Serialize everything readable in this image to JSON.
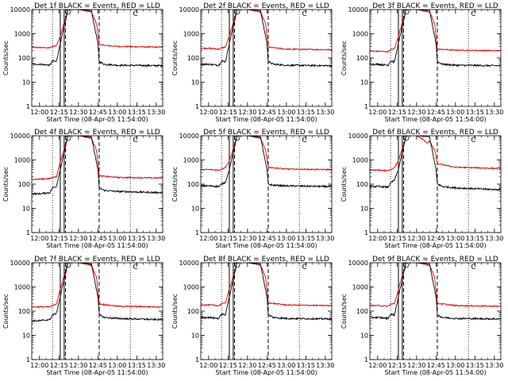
{
  "chart_data": {
    "type": "line",
    "y_axis_label": "Counts/sec",
    "x_axis_label": "Start Time (08-Apr-05 11:54:00)",
    "y_scale": "log",
    "ylim": [
      1,
      10000
    ],
    "y_ticks": [
      {
        "value": 1,
        "label": "1"
      },
      {
        "value": 10,
        "label": "10"
      },
      {
        "value": 100,
        "label": "100"
      },
      {
        "value": 1000,
        "label": "1000"
      },
      {
        "value": 10000,
        "label": "10000"
      }
    ],
    "xlim": [
      "11:54",
      "13:35"
    ],
    "x_ticks": [
      {
        "time": "12:00",
        "label": "12:00"
      },
      {
        "time": "12:15",
        "label": "12:15"
      },
      {
        "time": "12:30",
        "label": "12:30"
      },
      {
        "time": "12:45",
        "label": "12:45"
      },
      {
        "time": "13:00",
        "label": "13:00"
      },
      {
        "time": "13:15",
        "label": "13:15"
      },
      {
        "time": "13:30",
        "label": "13:30"
      }
    ],
    "markers": {
      "dotted": [
        "12:10",
        "13:10"
      ],
      "solid": [
        "12:16",
        "12:19"
      ],
      "dashed": [
        "12:20",
        "12:46"
      ],
      "circle_time": "12:22",
      "c_time": "13:12",
      "c_label": "C"
    },
    "series_colors": {
      "events": "#000000",
      "lld": "#e00000"
    },
    "panels": [
      {
        "title": "Det 1f BLACK = Events, RED = LLD",
        "events": [
          [
            "12:00",
            55
          ],
          [
            "12:08",
            50
          ],
          [
            "12:10",
            75
          ],
          [
            "12:13",
            70
          ],
          [
            "12:16",
            400
          ],
          [
            "12:19",
            2000
          ],
          [
            "12:22",
            10000
          ],
          [
            "12:30",
            10000
          ],
          [
            "12:40",
            9000
          ],
          [
            "12:45",
            400
          ],
          [
            "12:46",
            70
          ],
          [
            "12:50",
            55
          ],
          [
            "13:00",
            50
          ],
          [
            "13:30",
            48
          ]
        ],
        "lld": [
          [
            "12:00",
            270
          ],
          [
            "12:08",
            260
          ],
          [
            "12:10",
            300
          ],
          [
            "12:13",
            320
          ],
          [
            "12:16",
            800
          ],
          [
            "12:19",
            3000
          ],
          [
            "12:22",
            10000
          ],
          [
            "12:30",
            10000
          ],
          [
            "12:40",
            8000
          ],
          [
            "12:44",
            2500
          ],
          [
            "12:46",
            350
          ],
          [
            "13:00",
            300
          ],
          [
            "13:30",
            280
          ]
        ]
      },
      {
        "title": "Det 2f BLACK = Events, RED = LLD",
        "events": [
          [
            "12:00",
            55
          ],
          [
            "12:08",
            50
          ],
          [
            "12:10",
            75
          ],
          [
            "12:13",
            70
          ],
          [
            "12:16",
            400
          ],
          [
            "12:19",
            2000
          ],
          [
            "12:22",
            10000
          ],
          [
            "12:30",
            10000
          ],
          [
            "12:40",
            9000
          ],
          [
            "12:45",
            400
          ],
          [
            "12:46",
            70
          ],
          [
            "12:50",
            55
          ],
          [
            "13:00",
            50
          ],
          [
            "13:30",
            48
          ]
        ],
        "lld": [
          [
            "12:00",
            250
          ],
          [
            "12:08",
            230
          ],
          [
            "12:10",
            260
          ],
          [
            "12:13",
            280
          ],
          [
            "12:16",
            800
          ],
          [
            "12:19",
            3000
          ],
          [
            "12:22",
            10000
          ],
          [
            "12:30",
            10000
          ],
          [
            "12:40",
            8000
          ],
          [
            "12:44",
            2500
          ],
          [
            "12:46",
            280
          ],
          [
            "13:00",
            230
          ],
          [
            "13:30",
            220
          ]
        ]
      },
      {
        "title": "Det 3f BLACK = Events, RED = LLD",
        "events": [
          [
            "12:00",
            55
          ],
          [
            "12:08",
            50
          ],
          [
            "12:10",
            75
          ],
          [
            "12:13",
            70
          ],
          [
            "12:16",
            400
          ],
          [
            "12:19",
            2000
          ],
          [
            "12:22",
            10000
          ],
          [
            "12:30",
            10000
          ],
          [
            "12:40",
            9000
          ],
          [
            "12:45",
            400
          ],
          [
            "12:46",
            70
          ],
          [
            "12:50",
            55
          ],
          [
            "13:00",
            50
          ],
          [
            "13:30",
            48
          ]
        ],
        "lld": [
          [
            "12:00",
            190
          ],
          [
            "12:08",
            180
          ],
          [
            "12:10",
            220
          ],
          [
            "12:13",
            240
          ],
          [
            "12:16",
            800
          ],
          [
            "12:19",
            3000
          ],
          [
            "12:22",
            10000
          ],
          [
            "12:30",
            10000
          ],
          [
            "12:40",
            8000
          ],
          [
            "12:44",
            2500
          ],
          [
            "12:46",
            230
          ],
          [
            "13:00",
            210
          ],
          [
            "13:30",
            200
          ]
        ]
      },
      {
        "title": "Det 4f BLACK = Events, RED = LLD",
        "events": [
          [
            "12:00",
            40
          ],
          [
            "12:08",
            45
          ],
          [
            "12:10",
            70
          ],
          [
            "12:13",
            80
          ],
          [
            "12:16",
            400
          ],
          [
            "12:19",
            2000
          ],
          [
            "12:22",
            10000
          ],
          [
            "12:30",
            10000
          ],
          [
            "12:40",
            9000
          ],
          [
            "12:45",
            400
          ],
          [
            "12:46",
            70
          ],
          [
            "12:50",
            55
          ],
          [
            "13:00",
            50
          ],
          [
            "13:30",
            45
          ]
        ],
        "lld": [
          [
            "12:00",
            160
          ],
          [
            "12:08",
            170
          ],
          [
            "12:10",
            190
          ],
          [
            "12:13",
            200
          ],
          [
            "12:16",
            800
          ],
          [
            "12:19",
            3000
          ],
          [
            "12:22",
            10000
          ],
          [
            "12:30",
            10000
          ],
          [
            "12:40",
            8000
          ],
          [
            "12:44",
            2500
          ],
          [
            "12:46",
            220
          ],
          [
            "13:00",
            190
          ],
          [
            "13:30",
            180
          ]
        ]
      },
      {
        "title": "Det 5f BLACK = Events, RED = LLD",
        "events": [
          [
            "12:00",
            85
          ],
          [
            "12:08",
            80
          ],
          [
            "12:10",
            100
          ],
          [
            "12:13",
            120
          ],
          [
            "12:16",
            400
          ],
          [
            "12:19",
            2000
          ],
          [
            "12:22",
            10000
          ],
          [
            "12:30",
            10000
          ],
          [
            "12:40",
            9000
          ],
          [
            "12:45",
            400
          ],
          [
            "12:46",
            100
          ],
          [
            "12:50",
            90
          ],
          [
            "13:00",
            85
          ],
          [
            "13:30",
            80
          ]
        ],
        "lld": [
          [
            "12:00",
            400
          ],
          [
            "12:08",
            380
          ],
          [
            "12:10",
            420
          ],
          [
            "12:13",
            500
          ],
          [
            "12:16",
            900
          ],
          [
            "12:19",
            3000
          ],
          [
            "12:22",
            10000
          ],
          [
            "12:30",
            10000
          ],
          [
            "12:40",
            8000
          ],
          [
            "12:44",
            2500
          ],
          [
            "12:46",
            500
          ],
          [
            "13:00",
            420
          ],
          [
            "13:30",
            400
          ]
        ]
      },
      {
        "title": "Det 6f BLACK = Events, RED = LLD",
        "events": [
          [
            "12:00",
            80
          ],
          [
            "12:08",
            75
          ],
          [
            "12:10",
            110
          ],
          [
            "12:13",
            150
          ],
          [
            "12:16",
            400
          ],
          [
            "12:19",
            2000
          ],
          [
            "12:22",
            10000
          ],
          [
            "12:30",
            10000
          ],
          [
            "12:40",
            9000
          ],
          [
            "12:45",
            400
          ],
          [
            "12:46",
            100
          ],
          [
            "12:50",
            80
          ],
          [
            "13:00",
            70
          ],
          [
            "13:30",
            60
          ]
        ],
        "lld": [
          [
            "12:00",
            380
          ],
          [
            "12:08",
            360
          ],
          [
            "12:10",
            400
          ],
          [
            "12:13",
            500
          ],
          [
            "12:16",
            900
          ],
          [
            "12:19",
            3000
          ],
          [
            "12:22",
            10000
          ],
          [
            "12:30",
            10000
          ],
          [
            "12:35",
            7000
          ],
          [
            "12:38",
            5000
          ],
          [
            "12:40",
            6000
          ],
          [
            "12:44",
            2500
          ],
          [
            "12:46",
            700
          ],
          [
            "13:00",
            500
          ],
          [
            "13:30",
            450
          ]
        ]
      },
      {
        "title": "Det 7f BLACK = Events, RED = LLD",
        "events": [
          [
            "12:00",
            40
          ],
          [
            "12:08",
            45
          ],
          [
            "12:10",
            70
          ],
          [
            "12:13",
            80
          ],
          [
            "12:16",
            400
          ],
          [
            "12:19",
            2000
          ],
          [
            "12:22",
            10000
          ],
          [
            "12:30",
            10000
          ],
          [
            "12:40",
            9000
          ],
          [
            "12:45",
            400
          ],
          [
            "12:46",
            70
          ],
          [
            "12:50",
            55
          ],
          [
            "13:00",
            50
          ],
          [
            "13:30",
            45
          ]
        ],
        "lld": [
          [
            "12:00",
            150
          ],
          [
            "12:08",
            150
          ],
          [
            "12:10",
            170
          ],
          [
            "12:13",
            200
          ],
          [
            "12:16",
            800
          ],
          [
            "12:19",
            3000
          ],
          [
            "12:22",
            10000
          ],
          [
            "12:30",
            10000
          ],
          [
            "12:40",
            8000
          ],
          [
            "12:44",
            2500
          ],
          [
            "12:46",
            200
          ],
          [
            "13:00",
            160
          ],
          [
            "13:30",
            150
          ]
        ]
      },
      {
        "title": "Det 8f BLACK = Events, RED = LLD",
        "events": [
          [
            "12:00",
            55
          ],
          [
            "12:08",
            50
          ],
          [
            "12:10",
            75
          ],
          [
            "12:13",
            70
          ],
          [
            "12:16",
            400
          ],
          [
            "12:19",
            2000
          ],
          [
            "12:22",
            10000
          ],
          [
            "12:30",
            10000
          ],
          [
            "12:40",
            9000
          ],
          [
            "12:45",
            400
          ],
          [
            "12:46",
            70
          ],
          [
            "12:50",
            55
          ],
          [
            "13:00",
            50
          ],
          [
            "13:30",
            48
          ]
        ],
        "lld": [
          [
            "12:00",
            180
          ],
          [
            "12:08",
            170
          ],
          [
            "12:10",
            200
          ],
          [
            "12:13",
            220
          ],
          [
            "12:16",
            800
          ],
          [
            "12:19",
            3000
          ],
          [
            "12:22",
            10000
          ],
          [
            "12:30",
            10000
          ],
          [
            "12:40",
            8000
          ],
          [
            "12:44",
            2500
          ],
          [
            "12:46",
            220
          ],
          [
            "13:00",
            180
          ],
          [
            "13:30",
            170
          ]
        ]
      },
      {
        "title": "Det 9f BLACK = Events, RED = LLD",
        "events": [
          [
            "12:00",
            55
          ],
          [
            "12:08",
            50
          ],
          [
            "12:10",
            75
          ],
          [
            "12:13",
            70
          ],
          [
            "12:16",
            400
          ],
          [
            "12:19",
            2000
          ],
          [
            "12:22",
            10000
          ],
          [
            "12:30",
            10000
          ],
          [
            "12:40",
            9000
          ],
          [
            "12:45",
            400
          ],
          [
            "12:46",
            70
          ],
          [
            "12:50",
            55
          ],
          [
            "13:00",
            50
          ],
          [
            "13:30",
            48
          ]
        ],
        "lld": [
          [
            "12:00",
            170
          ],
          [
            "12:08",
            160
          ],
          [
            "12:10",
            190
          ],
          [
            "12:13",
            210
          ],
          [
            "12:16",
            800
          ],
          [
            "12:19",
            3000
          ],
          [
            "12:22",
            10000
          ],
          [
            "12:30",
            10000
          ],
          [
            "12:40",
            8000
          ],
          [
            "12:44",
            2500
          ],
          [
            "12:46",
            210
          ],
          [
            "13:00",
            170
          ],
          [
            "13:30",
            160
          ]
        ]
      }
    ]
  }
}
